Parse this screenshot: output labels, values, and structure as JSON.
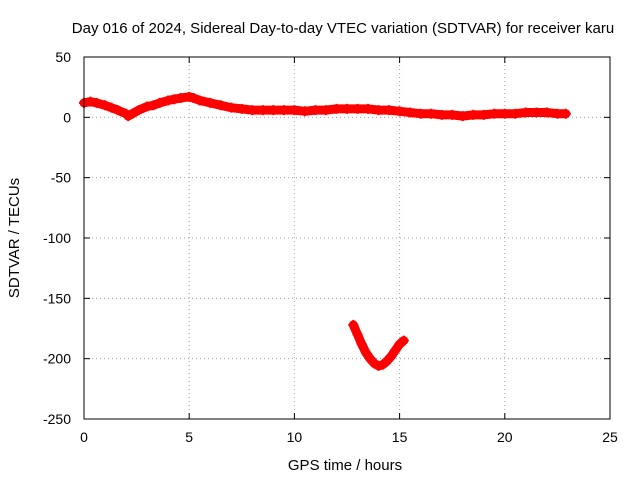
{
  "chart_data": {
    "type": "scatter",
    "title": "Day 016 of 2024, Sidereal Day-to-day VTEC variation (SDTVAR) for receiver karu",
    "xlabel": "GPS time / hours",
    "ylabel": "SDTVAR / TECUs",
    "xlim": [
      0,
      25
    ],
    "ylim": [
      -250,
      50
    ],
    "xticks": [
      "0",
      "5",
      "10",
      "15",
      "20",
      "25"
    ],
    "yticks": [
      "50",
      "0",
      "-50",
      "-100",
      "-150",
      "-200",
      "-250"
    ],
    "grid": true,
    "legend": "none",
    "series": [
      {
        "color": "#ff0000",
        "marker": "plus",
        "x": [
          0.0,
          0.3,
          0.6,
          1.0,
          1.3,
          1.6,
          2.0,
          2.1,
          2.3,
          2.6,
          3.0,
          3.3,
          3.6,
          4.0,
          4.3,
          4.6,
          5.0,
          5.2,
          5.5,
          6.0,
          6.5,
          7.0,
          7.5,
          8.0,
          8.5,
          9.0,
          9.5,
          10.0,
          10.5,
          11.0,
          11.5,
          12.0,
          12.5,
          13.0,
          13.5,
          14.0,
          14.5,
          15.0,
          15.5,
          16.0,
          16.5,
          17.0,
          17.5,
          18.0,
          18.5,
          19.0,
          19.5,
          20.0,
          20.5,
          21.0,
          21.5,
          22.0,
          22.5,
          22.9
        ],
        "y": [
          12,
          13,
          12,
          10,
          8,
          6,
          3,
          1,
          3,
          6,
          9,
          10,
          12,
          14,
          15,
          16,
          17,
          16,
          14,
          12,
          10,
          8,
          7,
          6,
          6,
          6,
          6,
          6,
          5,
          6,
          6,
          7,
          7,
          7,
          7,
          6,
          6,
          5,
          4,
          3,
          3,
          2,
          2,
          1,
          2,
          2,
          3,
          3,
          3,
          4,
          4,
          4,
          3,
          3
        ]
      },
      {
        "color": "#ff0000",
        "marker": "plus",
        "x": [
          12.8,
          13.0,
          13.2,
          13.4,
          13.6,
          13.8,
          14.0,
          14.2,
          14.4,
          14.6,
          14.8,
          15.0,
          15.2
        ],
        "y": [
          -172,
          -180,
          -188,
          -195,
          -200,
          -204,
          -206,
          -205,
          -202,
          -198,
          -193,
          -188,
          -185
        ]
      }
    ]
  }
}
